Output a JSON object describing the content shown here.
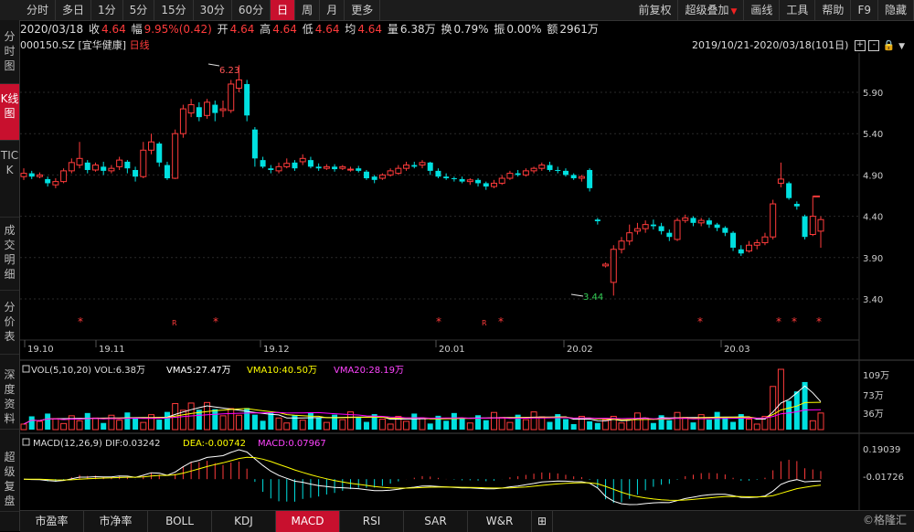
{
  "toolbar": {
    "periods": [
      "分时",
      "多日",
      "1分",
      "5分",
      "15分",
      "30分",
      "60分",
      "日",
      "周",
      "月",
      "更多"
    ],
    "active_period": "日",
    "right_buttons": [
      "前复权",
      "超级叠加",
      "画线",
      "工具",
      "帮助",
      "F9",
      "隐藏"
    ]
  },
  "sidebar": {
    "items": [
      "分时图",
      "K线图",
      "TICK",
      "成交明细",
      "分价表",
      "深度资料",
      "超级复盘"
    ],
    "active": "K线图"
  },
  "info": {
    "date": "2020/03/18",
    "close_label": "收",
    "close": "4.64",
    "change_label": "幅",
    "change": "9.95%(0.42)",
    "open_label": "开",
    "open": "4.64",
    "high_label": "高",
    "high": "4.64",
    "low_label": "低",
    "low": "4.64",
    "avg_label": "均",
    "avg": "4.64",
    "vol_label": "量",
    "vol": "6.38万",
    "turnover_label": "换",
    "turnover": "0.79%",
    "amplitude_label": "振",
    "amplitude": "0.00%",
    "amount_label": "额",
    "amount": "2961万"
  },
  "stock": {
    "code": "000150.SZ",
    "name": "[宜华健康]",
    "kline_label": "日线"
  },
  "range": {
    "text": "2019/10/21-2020/03/18(101日)"
  },
  "price_axis": {
    "ticks": [
      "5.90",
      "5.40",
      "4.90",
      "4.40",
      "3.90",
      "3.40"
    ]
  },
  "date_axis": {
    "labels": [
      "19.10",
      "19.11",
      "19.12",
      "20.01",
      "20.02",
      "20.03"
    ]
  },
  "annotations": {
    "high": "6.23",
    "low": "3.44",
    "star": "*",
    "r": "R"
  },
  "volume": {
    "legend_vol": "VOL(5,10,20) VOL:6.38万",
    "legend_vma5": "VMA5:27.47万",
    "legend_vma10": "VMA10:40.50万",
    "legend_vma20": "VMA20:28.19万",
    "ticks": [
      "109万",
      "73万",
      "36万"
    ]
  },
  "macd": {
    "legend_name": "MACD(12,26,9) DIF:0.03242",
    "legend_dea": "DEA:-0.00742",
    "legend_macd": "MACD:0.07967",
    "ticks": [
      "0.19039",
      "-0.01726"
    ]
  },
  "bottom_tabs": {
    "items": [
      "市盈率",
      "市净率",
      "BOLL",
      "KDJ",
      "MACD",
      "RSI",
      "SAR",
      "W&R"
    ],
    "active": "MACD",
    "add": "⊞"
  },
  "watermark": "©格隆汇",
  "colors": {
    "up": "#ff3b3b",
    "down": "#00e0e0",
    "ma5": "#ffffff",
    "ma10": "#ffff00",
    "ma20": "#ff00ff",
    "active": "#c8102e"
  }
}
